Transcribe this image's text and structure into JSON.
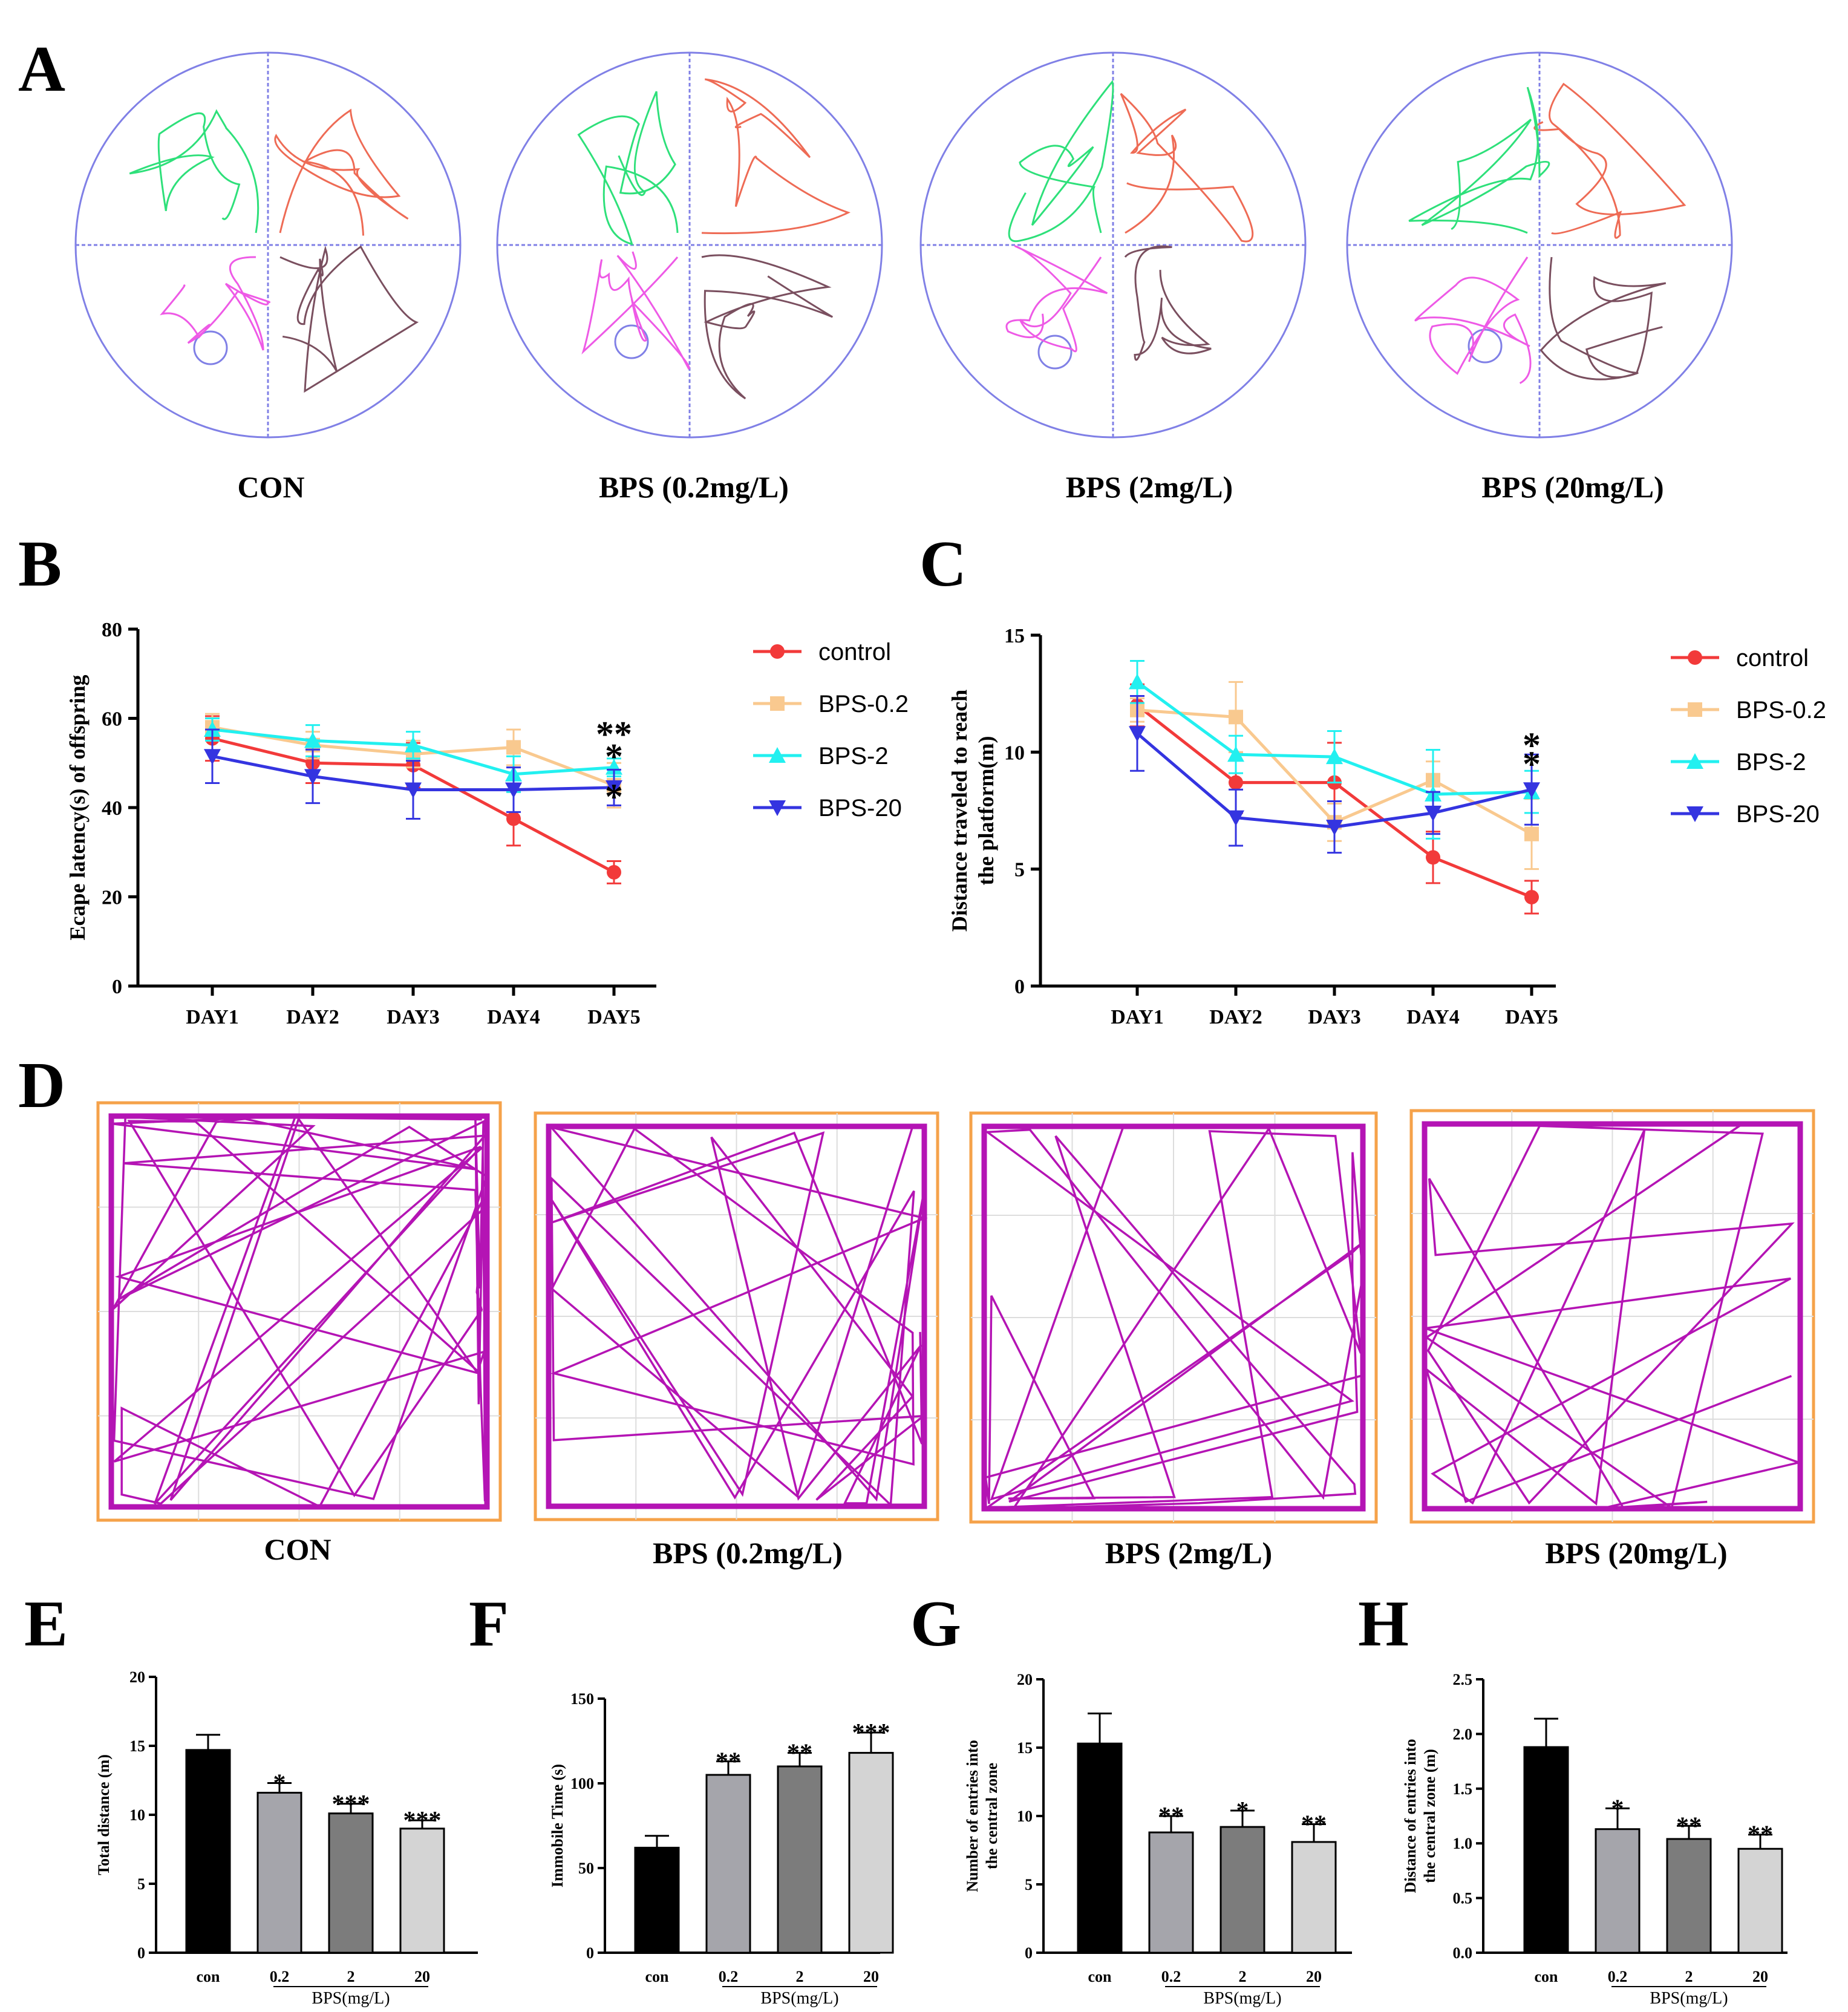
{
  "panel_letters": [
    "A",
    "B",
    "C",
    "D",
    "E",
    "F",
    "G",
    "H"
  ],
  "maze_captions": [
    "CON",
    "BPS (0.2mg/L)",
    "BPS (2mg/L)",
    "BPS (20mg/L)"
  ],
  "openfield_captions": [
    "CON",
    "BPS (0.2mg/L)",
    "BPS (2mg/L)",
    "BPS (20mg/L)"
  ],
  "colors": {
    "maze_axis": "#8080e6",
    "track_q1": "#ee6b55",
    "track_q2": "#2ee07a",
    "track_q3": "#ee5ae6",
    "track_q4": "#7a4f5f",
    "openfield_track": "#b414b4",
    "openfield_border": "#f5a24a",
    "grid": "#dddddd"
  },
  "chart_data": [
    {
      "id": "B",
      "type": "line",
      "ylabel": "Ecape latency(s) of offspring",
      "xlabel": "",
      "categories": [
        "DAY1",
        "DAY2",
        "DAY3",
        "DAY4",
        "DAY5"
      ],
      "ylim": [
        0,
        80
      ],
      "yticks": [
        0,
        20,
        40,
        60,
        80
      ],
      "legend_position": "right",
      "series": [
        {
          "name": "control",
          "color": "#f23a3a",
          "marker": "circle",
          "values": [
            55.5,
            50,
            49.5,
            37.5,
            25.5
          ],
          "errors": [
            5,
            4.5,
            5,
            6,
            2.5
          ]
        },
        {
          "name": "BPS-0.2",
          "color": "#f9c98f",
          "marker": "square",
          "values": [
            58,
            54,
            52,
            53.5,
            45
          ],
          "errors": [
            3,
            3,
            3,
            4,
            5
          ]
        },
        {
          "name": "BPS-2",
          "color": "#22f0f0",
          "marker": "triangle-up",
          "values": [
            57.5,
            55,
            54,
            47.5,
            49
          ],
          "errors": [
            2.5,
            3.5,
            3,
            4,
            2
          ]
        },
        {
          "name": "BPS-20",
          "color": "#3434e0",
          "marker": "triangle-down",
          "values": [
            51.5,
            47,
            44,
            44,
            44.5
          ],
          "errors": [
            6,
            6,
            6.5,
            5,
            4
          ]
        }
      ],
      "annotations": [
        {
          "text": "**",
          "x": "DAY5",
          "y": 57
        },
        {
          "text": "*",
          "x": "DAY5",
          "y": 52
        },
        {
          "text": "*",
          "x": "DAY5",
          "y": 43
        }
      ]
    },
    {
      "id": "C",
      "type": "line",
      "ylabel": "Distance traveled to reach the platform(m)",
      "ylabel_lines": [
        "Distance traveled to reach",
        "the platform(m)"
      ],
      "xlabel": "",
      "categories": [
        "DAY1",
        "DAY2",
        "DAY3",
        "DAY4",
        "DAY5"
      ],
      "ylim": [
        0,
        15
      ],
      "yticks": [
        0,
        5,
        10,
        15
      ],
      "legend_position": "right",
      "series": [
        {
          "name": "control",
          "color": "#f23a3a",
          "marker": "circle",
          "values": [
            12,
            8.7,
            8.7,
            5.5,
            3.8
          ],
          "errors": [
            0.9,
            1.3,
            1.7,
            1.1,
            0.7
          ]
        },
        {
          "name": "BPS-0.2",
          "color": "#f9c98f",
          "marker": "square",
          "values": [
            11.8,
            11.5,
            7,
            8.8,
            6.5
          ],
          "errors": [
            0.5,
            1.5,
            0.8,
            0.8,
            1.5
          ]
        },
        {
          "name": "BPS-2",
          "color": "#22f0f0",
          "marker": "triangle-up",
          "values": [
            13,
            9.9,
            9.8,
            8.2,
            8.3
          ],
          "errors": [
            0.9,
            0.8,
            1.1,
            1.9,
            0.9
          ]
        },
        {
          "name": "BPS-20",
          "color": "#3434e0",
          "marker": "triangle-down",
          "values": [
            10.8,
            7.2,
            6.8,
            7.4,
            8.4
          ],
          "errors": [
            1.6,
            1.2,
            1.1,
            0.9,
            1.5
          ]
        }
      ],
      "annotations": [
        {
          "text": "*",
          "x": "DAY5",
          "y": 10.4
        },
        {
          "text": "*",
          "x": "DAY5",
          "y": 9.6
        }
      ]
    },
    {
      "id": "E",
      "type": "bar",
      "ylabel": "Total distance (m)",
      "ylabel_lines": [
        "Total distance (m)"
      ],
      "categories": [
        "con",
        "0.2",
        "2",
        "20"
      ],
      "group_label": "BPS(mg/L)",
      "ylim": [
        0,
        20
      ],
      "yticks": [
        0,
        5,
        10,
        15,
        20
      ],
      "values": [
        14.7,
        11.6,
        10.1,
        9.0
      ],
      "errors": [
        1.1,
        0.7,
        0.7,
        0.6
      ],
      "colors": [
        "#000000",
        "#a5a5ab",
        "#7c7c7c",
        "#d4d4d4"
      ],
      "significance": [
        "",
        "*",
        "***",
        "***"
      ]
    },
    {
      "id": "F",
      "type": "bar",
      "ylabel": "Immobile Time (s)",
      "ylabel_lines": [
        "Immobile Time (s)"
      ],
      "categories": [
        "con",
        "0.2",
        "2",
        "20"
      ],
      "group_label": "BPS(mg/L)",
      "ylim": [
        0,
        150
      ],
      "yticks": [
        0,
        50,
        100,
        150
      ],
      "values": [
        62,
        105,
        110,
        118
      ],
      "errors": [
        7,
        8,
        8,
        12
      ],
      "colors": [
        "#000000",
        "#a5a5ab",
        "#7c7c7c",
        "#d4d4d4"
      ],
      "significance": [
        "",
        "**",
        "**",
        "***"
      ]
    },
    {
      "id": "G",
      "type": "bar",
      "ylabel": "Number of entries into the central zone",
      "ylabel_lines": [
        "Number of entries into",
        "the central zone"
      ],
      "categories": [
        "con",
        "0.2",
        "2",
        "20"
      ],
      "group_label": "BPS(mg/L)",
      "ylim": [
        0,
        20
      ],
      "yticks": [
        0,
        5,
        10,
        15,
        20
      ],
      "values": [
        15.3,
        8.8,
        9.2,
        8.1
      ],
      "errors": [
        2.2,
        1.2,
        1.2,
        1.3
      ],
      "colors": [
        "#000000",
        "#a5a5ab",
        "#7c7c7c",
        "#d4d4d4"
      ],
      "significance": [
        "",
        "**",
        "*",
        "**"
      ]
    },
    {
      "id": "H",
      "type": "bar",
      "ylabel": "Distance of entries into the central zone (m)",
      "ylabel_lines": [
        "Distance of entries into",
        "the central zone (m)"
      ],
      "categories": [
        "con",
        "0.2",
        "2",
        "20"
      ],
      "group_label": "BPS(mg/L)",
      "ylim": [
        0,
        2.5
      ],
      "yticks": [
        "0.0",
        "0.5",
        "1.0",
        "1.5",
        "2.0",
        "2.5"
      ],
      "values": [
        1.88,
        1.13,
        1.04,
        0.95
      ],
      "errors": [
        0.26,
        0.19,
        0.12,
        0.13
      ],
      "colors": [
        "#000000",
        "#a5a5ab",
        "#7c7c7c",
        "#d4d4d4"
      ],
      "significance": [
        "",
        "*",
        "**",
        "**"
      ]
    }
  ]
}
